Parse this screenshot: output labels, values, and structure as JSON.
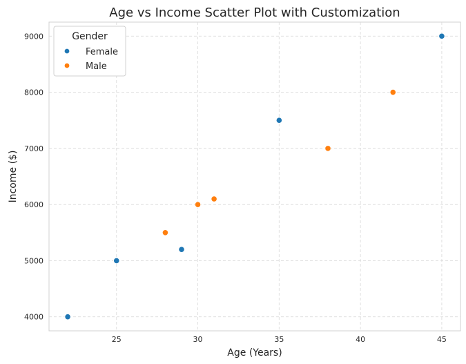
{
  "chart_data": {
    "type": "scatter",
    "title": "Age vs Income Scatter Plot with Customization",
    "xlabel": "Age (Years)",
    "ylabel": "Income ($)",
    "xlim": [
      20.85,
      46.15
    ],
    "ylim": [
      3750,
      9250
    ],
    "xticks": [
      25,
      30,
      35,
      40,
      45
    ],
    "yticks": [
      4000,
      5000,
      6000,
      7000,
      8000,
      9000
    ],
    "grid": true,
    "legend": {
      "title": "Gender",
      "placement": "top-left"
    },
    "series": [
      {
        "name": "Female",
        "color": "#1f77b4",
        "points": [
          {
            "x": 22,
            "y": 4000
          },
          {
            "x": 25,
            "y": 5000
          },
          {
            "x": 29,
            "y": 5200
          },
          {
            "x": 35,
            "y": 7500
          },
          {
            "x": 45,
            "y": 9000
          }
        ]
      },
      {
        "name": "Male",
        "color": "#ff7f0e",
        "points": [
          {
            "x": 28,
            "y": 5500
          },
          {
            "x": 30,
            "y": 6000
          },
          {
            "x": 31,
            "y": 6100
          },
          {
            "x": 38,
            "y": 7000
          },
          {
            "x": 42,
            "y": 8000
          }
        ]
      }
    ]
  }
}
